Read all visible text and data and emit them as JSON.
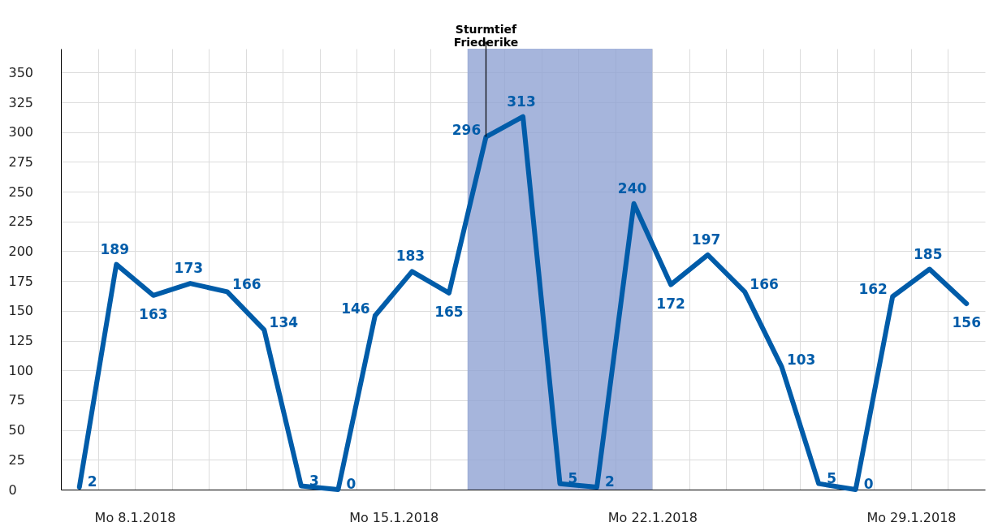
{
  "chart_data": {
    "type": "line",
    "x": [
      "2018-01-07",
      "2018-01-08",
      "2018-01-09",
      "2018-01-10",
      "2018-01-11",
      "2018-01-12",
      "2018-01-13",
      "2018-01-14",
      "2018-01-15",
      "2018-01-16",
      "2018-01-17",
      "2018-01-18",
      "2018-01-19",
      "2018-01-20",
      "2018-01-21",
      "2018-01-22",
      "2018-01-23",
      "2018-01-24",
      "2018-01-25",
      "2018-01-26",
      "2018-01-27",
      "2018-01-28",
      "2018-01-29",
      "2018-01-30",
      "2018-01-31"
    ],
    "series": [
      {
        "color": "#005ca9",
        "values": [
          2,
          189,
          163,
          173,
          166,
          134,
          3,
          0,
          146,
          183,
          165,
          296,
          313,
          5,
          2,
          240,
          172,
          197,
          166,
          103,
          5,
          0,
          162,
          185,
          156
        ]
      }
    ],
    "xlim": [
      "2018-01-06T12:00",
      "2018-01-31T12:00"
    ],
    "xticks": [
      {
        "value": "2018-01-06T12:00",
        "label": null
      },
      {
        "value": "2018-01-07T12:00",
        "label": null
      },
      {
        "value": "2018-01-08T12:00",
        "label": "Mo  8.1.2018"
      },
      {
        "value": "2018-01-09T12:00",
        "label": null
      },
      {
        "value": "2018-01-10T12:00",
        "label": null
      },
      {
        "value": "2018-01-11T12:00",
        "label": null
      },
      {
        "value": "2018-01-12T12:00",
        "label": null
      },
      {
        "value": "2018-01-13T12:00",
        "label": null
      },
      {
        "value": "2018-01-14T12:00",
        "label": null
      },
      {
        "value": "2018-01-15T12:00",
        "label": "Mo 15.1.2018"
      },
      {
        "value": "2018-01-16T12:00",
        "label": null
      },
      {
        "value": "2018-01-17T12:00",
        "label": null
      },
      {
        "value": "2018-01-18T12:00",
        "label": null
      },
      {
        "value": "2018-01-19T12:00",
        "label": null
      },
      {
        "value": "2018-01-20T12:00",
        "label": null
      },
      {
        "value": "2018-01-21T12:00",
        "label": null
      },
      {
        "value": "2018-01-22T12:00",
        "label": "Mo 22.1.2018"
      },
      {
        "value": "2018-01-23T12:00",
        "label": null
      },
      {
        "value": "2018-01-24T12:00",
        "label": null
      },
      {
        "value": "2018-01-25T12:00",
        "label": null
      },
      {
        "value": "2018-01-26T12:00",
        "label": null
      },
      {
        "value": "2018-01-27T12:00",
        "label": null
      },
      {
        "value": "2018-01-28T12:00",
        "label": null
      },
      {
        "value": "2018-01-29T12:00",
        "label": "Mo 29.1.2018"
      },
      {
        "value": "2018-01-30T12:00",
        "label": null
      }
    ],
    "ylim": [
      0,
      370
    ],
    "yticks": [
      0,
      25,
      50,
      75,
      100,
      125,
      150,
      175,
      200,
      225,
      250,
      275,
      300,
      325,
      350
    ],
    "grid": true,
    "marker": "none",
    "line_style": "solid",
    "data_labels": true,
    "bands": [
      {
        "axis": "x",
        "from": "2018-01-17T12:00",
        "to": "2018-01-22T12:00",
        "color": "#a6b5dc"
      }
    ],
    "annotations": [
      {
        "text": "Sturmtief\nFriederike",
        "x": "2018-01-18",
        "y": 296
      }
    ]
  }
}
